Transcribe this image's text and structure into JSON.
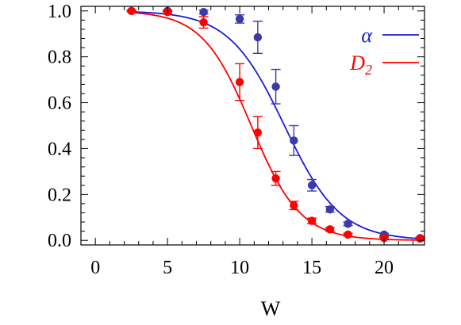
{
  "chart_data": {
    "type": "scatter",
    "title": "",
    "xlabel": "W",
    "ylabel": "",
    "xlim": [
      -1,
      22.8
    ],
    "ylim": [
      -0.02,
      1.02
    ],
    "x_ticks": [
      0,
      5,
      10,
      15,
      20
    ],
    "x_tick_labels": [
      "0",
      "5",
      "10",
      "15",
      "20"
    ],
    "y_ticks": [
      0,
      0.2,
      0.4,
      0.6,
      0.8,
      1.0
    ],
    "y_tick_labels": [
      "0.0",
      "0.2",
      "0.4",
      "0.6",
      "0.8",
      "1.0"
    ],
    "grid": false,
    "legend_position": "top-right",
    "series": [
      {
        "name": "α",
        "legend_base": "α",
        "legend_sub": "",
        "color": "#1a1adb",
        "marker_color": "#3a3aa8",
        "x": [
          2.5,
          5,
          7.5,
          10,
          11.25,
          12.5,
          13.75,
          15,
          16.25,
          17.5,
          20,
          22.5
        ],
        "y": [
          1.0,
          1.0,
          0.995,
          0.965,
          0.885,
          0.67,
          0.435,
          0.24,
          0.135,
          0.072,
          0.025,
          0.01
        ],
        "err": [
          0.003,
          0.003,
          0.008,
          0.018,
          0.07,
          0.075,
          0.065,
          0.025,
          0.012,
          0.008,
          0.006,
          0.004
        ],
        "fit": {
          "A": 1.0,
          "x0": 13.1,
          "k": 0.52
        }
      },
      {
        "name": "D2",
        "legend_base": "D",
        "legend_sub": "2",
        "color": "#ff0000",
        "marker_color": "#ff0000",
        "x": [
          2.5,
          5,
          7.5,
          10,
          11.25,
          12.5,
          13.75,
          15,
          16.25,
          17.5,
          20,
          22.5
        ],
        "y": [
          1.0,
          0.995,
          0.95,
          0.69,
          0.47,
          0.27,
          0.152,
          0.085,
          0.048,
          0.025,
          0.01,
          0.008
        ],
        "err": [
          0.004,
          0.006,
          0.025,
          0.08,
          0.07,
          0.03,
          0.018,
          0.012,
          0.008,
          0.006,
          0.004,
          0.003
        ],
        "fit": {
          "A": 1.0,
          "x0": 10.8,
          "k": 0.59
        }
      }
    ]
  }
}
